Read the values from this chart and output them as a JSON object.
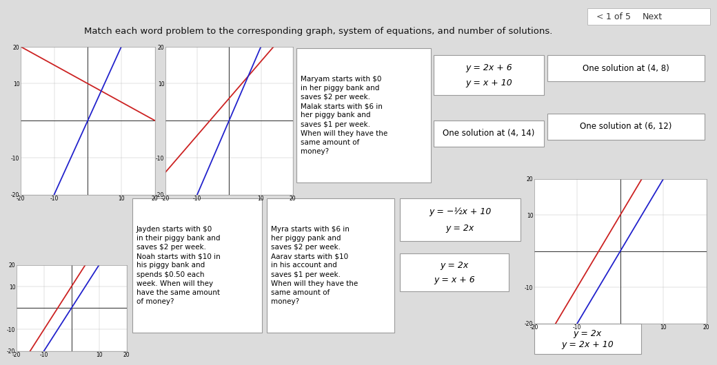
{
  "title": "Match each word problem to the corresponding graph, system of equations, and number of solutions.",
  "nav_text": "1 of 5",
  "nav_next": "Next",
  "bg_color": "#dcdcdc",
  "card_bg": "#ffffff",
  "graph1": {
    "xlim": [
      -20,
      20
    ],
    "ylim": [
      -20,
      20
    ],
    "xticks": [
      -20,
      -10,
      0,
      10,
      20
    ],
    "yticks": [
      -20,
      -10,
      0,
      10,
      20
    ],
    "line1": {
      "slope": -0.5,
      "intercept": 10,
      "color": "#cc2222"
    },
    "line2": {
      "slope": 2,
      "intercept": 0,
      "color": "#2222cc"
    }
  },
  "graph2": {
    "xlim": [
      -20,
      20
    ],
    "ylim": [
      -20,
      20
    ],
    "xticks": [
      -20,
      -10,
      0,
      10,
      20
    ],
    "yticks": [
      -20,
      -10,
      0,
      10,
      20
    ],
    "line1": {
      "slope": 1,
      "intercept": 6,
      "color": "#cc2222"
    },
    "line2": {
      "slope": 2,
      "intercept": 0,
      "color": "#2222cc"
    }
  },
  "graph3": {
    "xlim": [
      -20,
      20
    ],
    "ylim": [
      -20,
      20
    ],
    "xticks": [
      -20,
      -10,
      0,
      10,
      20
    ],
    "yticks": [
      -20,
      -10,
      0,
      10,
      20
    ],
    "line1": {
      "slope": 2,
      "intercept": 10,
      "color": "#cc2222"
    },
    "line2": {
      "slope": 2,
      "intercept": 0,
      "color": "#2222cc"
    }
  },
  "graph4": {
    "xlim": [
      -20,
      20
    ],
    "ylim": [
      -20,
      20
    ],
    "xticks": [
      -20,
      -10,
      0,
      10,
      20
    ],
    "yticks": [
      -20,
      -10,
      0,
      10,
      20
    ],
    "line1": {
      "slope": 2,
      "intercept": 10,
      "color": "#cc2222"
    },
    "line2": {
      "slope": 2,
      "intercept": 0,
      "color": "#2222cc"
    }
  },
  "wp1_text": "Maryam starts with $0\nin her piggy bank and\nsaves $2 per week.\nMalak starts with $6 in\nher piggy bank and\nsaves $1 per week.\nWhen will they have the\nsame amount of\nmoney?",
  "wp2_text": "Jayden starts with $0\nin their piggy bank and\nsaves $2 per week.\nNoah starts with $10 in\nhis piggy bank and\nspends $0.50 each\nweek. When will they\nhave the same amount\nof money?",
  "wp3_text": "Myra starts with $6 in\nher piggy pank and\nsaves $2 per week.\nAarav starts with $10\nin his account and\nsaves $1 per week.\nWhen will they have the\nsame amount of\nmoney?",
  "eq1_line1": "y = 2x + 6",
  "eq1_line2": "y = x + 10",
  "eq2_line1": "y = −½x + 10",
  "eq2_line2": "y = 2x",
  "eq3_line1": "y = 2x",
  "eq3_line2": "y = x + 6",
  "eq4_line1": "y = 2x",
  "eq4_line2": "y = 2x + 10",
  "sol1": "One solution at (4, 8)",
  "sol2": "One solution at (6, 12)",
  "sol3": "One solution at (4, 14)"
}
